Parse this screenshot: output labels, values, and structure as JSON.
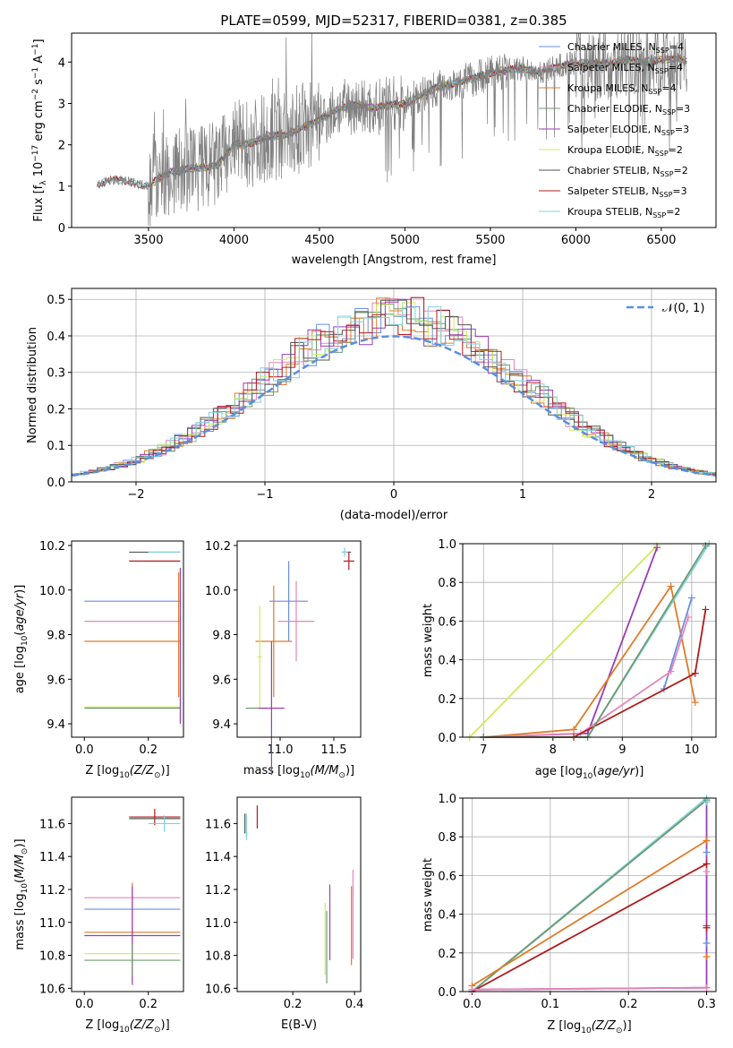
{
  "title": "PLATE=0599, MJD=52317, FIBERID=0381, z=0.385",
  "colors": {
    "chabrier_miles": "#6a8ee0",
    "salpeter_miles": "#e585b8",
    "kroupa_miles": "#e07b28",
    "chabrier_elodie": "#6f9a6f",
    "salpeter_elodie": "#9a3db8",
    "kroupa_elodie": "#cdec5a",
    "chabrier_stelib": "#555555",
    "salpeter_stelib": "#b01c1c",
    "kroupa_stelib": "#7ed3de",
    "observed": "#808080",
    "normal_dashed": "#5b8fe0"
  },
  "chart_data": [
    {
      "id": "spectrum",
      "type": "line",
      "xlabel": "wavelength [Angstrom, rest frame]",
      "ylabel": "Flux [f$_\\lambda$ 10$^{-17}$ erg cm$^{-2}$ s$^{-1}$ A$^{-1}$]",
      "ylabel_parts": {
        "flux": "Flux [f",
        "lam": "λ",
        "ten": " 10",
        "e1": "−17",
        "erg": " erg cm",
        "e2": "−2",
        "s": " s",
        "e3": "−1",
        "A": " A",
        "e4": "−1",
        "close": "]"
      },
      "xlim": [
        3050,
        6820
      ],
      "ylim": [
        0,
        4.7
      ],
      "xticks": [
        3500,
        4000,
        4500,
        5000,
        5500,
        6000,
        6500
      ],
      "yticks": [
        0,
        1,
        2,
        3,
        4
      ],
      "legend_placement": "right",
      "legend": [
        {
          "name": "Chabrier MILES, N",
          "sub": "SSP",
          "n": "=4",
          "color": "chabrier_miles"
        },
        {
          "name": "Salpeter MILES, N",
          "sub": "SSP",
          "n": "=4",
          "color": "salpeter_miles"
        },
        {
          "name": "Kroupa MILES, N",
          "sub": "SSP",
          "n": "=4",
          "color": "kroupa_miles"
        },
        {
          "name": "Chabrier ELODIE, N",
          "sub": "SSP",
          "n": "=3",
          "color": "chabrier_elodie"
        },
        {
          "name": "Salpeter ELODIE, N",
          "sub": "SSP",
          "n": "=3",
          "color": "salpeter_elodie"
        },
        {
          "name": "Kroupa ELODIE, N",
          "sub": "SSP",
          "n": "=2",
          "color": "kroupa_elodie"
        },
        {
          "name": "Chabrier STELIB, N",
          "sub": "SSP",
          "n": "=2",
          "color": "chabrier_stelib"
        },
        {
          "name": "Salpeter STELIB, N",
          "sub": "SSP",
          "n": "=3",
          "color": "salpeter_stelib"
        },
        {
          "name": "Kroupa STELIB, N",
          "sub": "SSP",
          "n": "=2",
          "color": "kroupa_stelib"
        }
      ],
      "continuum": [
        [
          3200,
          1.05
        ],
        [
          3300,
          1.15
        ],
        [
          3400,
          1.1
        ],
        [
          3500,
          1.0
        ],
        [
          3600,
          1.3
        ],
        [
          3700,
          1.4
        ],
        [
          3800,
          1.45
        ],
        [
          3900,
          1.5
        ],
        [
          4000,
          2.0
        ],
        [
          4100,
          2.05
        ],
        [
          4200,
          2.2
        ],
        [
          4300,
          2.25
        ],
        [
          4400,
          2.4
        ],
        [
          4500,
          2.6
        ],
        [
          4600,
          2.85
        ],
        [
          4700,
          2.95
        ],
        [
          4800,
          2.9
        ],
        [
          4900,
          2.95
        ],
        [
          5000,
          3.0
        ],
        [
          5100,
          3.2
        ],
        [
          5200,
          3.4
        ],
        [
          5300,
          3.5
        ],
        [
          5400,
          3.6
        ],
        [
          5500,
          3.75
        ],
        [
          5600,
          3.8
        ],
        [
          5700,
          3.85
        ],
        [
          5800,
          3.75
        ],
        [
          5900,
          3.9
        ],
        [
          6000,
          4.0
        ],
        [
          6100,
          3.95
        ],
        [
          6200,
          4.0
        ],
        [
          6300,
          4.05
        ],
        [
          6400,
          4.0
        ],
        [
          6500,
          4.05
        ],
        [
          6600,
          4.1
        ],
        [
          6650,
          4.0
        ]
      ]
    },
    {
      "id": "residuals",
      "type": "line",
      "xlabel": "(data-model)/error",
      "ylabel": "Normed distribution",
      "xlim": [
        -2.5,
        2.5
      ],
      "ylim": [
        0,
        0.53
      ],
      "xticks": [
        -2,
        -1,
        0,
        1,
        2
      ],
      "yticks": [
        0.0,
        0.1,
        0.2,
        0.3,
        0.4,
        0.5
      ],
      "grid": true,
      "legend_placement": "top-right",
      "legend_label": "𝒩(0, 1)",
      "series_note": "nine step histograms, one per model, plus dashed N(0,1)"
    },
    {
      "id": "age_vs_Z",
      "type": "scatter",
      "xlabel": "Z [log",
      "xlabel_sub": "10",
      "xlabel_tail": "(Z/Z",
      "xlabel_odot": "⊙",
      "xlabel_end": ")]",
      "ylabel": "age  [log10(age/yr)]",
      "xlim": [
        -0.04,
        0.31
      ],
      "ylim": [
        9.34,
        10.22
      ],
      "xticks": [
        0.0,
        0.2
      ],
      "yticks": [
        9.4,
        9.6,
        9.8,
        10.0,
        10.2
      ],
      "points": [
        {
          "model": "chabrier_miles",
          "x": 0.15,
          "xerr": [
            0.15,
            0.15
          ],
          "y": 9.95
        },
        {
          "model": "salpeter_miles",
          "x": 0.15,
          "xerr": [
            0.15,
            0.15
          ],
          "y": 9.86
        },
        {
          "model": "kroupa_miles",
          "x": 0.15,
          "xerr": [
            0.15,
            0.15
          ],
          "y": 9.77
        },
        {
          "model": "kroupa_miles",
          "x": 0.295,
          "xerr": [
            0.0,
            0.0
          ],
          "y": 9.8,
          "yerr": [
            0.28,
            0.28
          ]
        },
        {
          "model": "chabrier_elodie",
          "x": 0.15,
          "xerr": [
            0.15,
            0.15
          ],
          "y": 9.47
        },
        {
          "model": "kroupa_elodie",
          "x": 0.15,
          "xerr": [
            0.15,
            0.15
          ],
          "y": 9.475
        },
        {
          "model": "salpeter_elodie",
          "x": 0.3,
          "xerr": [
            0,
            0
          ],
          "y": 9.75,
          "yerr": [
            0.35,
            0.35
          ]
        },
        {
          "model": "chabrier_stelib",
          "x": 0.22,
          "xerr": [
            0.08,
            0.08
          ],
          "y": 10.17
        },
        {
          "model": "salpeter_stelib",
          "x": 0.22,
          "xerr": [
            0.08,
            0.08
          ],
          "y": 10.13
        },
        {
          "model": "kroupa_stelib",
          "x": 0.25,
          "xerr": [
            0.05,
            0.05
          ],
          "y": 10.17
        }
      ]
    },
    {
      "id": "age_vs_mass",
      "type": "scatter",
      "xlabel": "mass [log",
      "xlabel_sub": "10",
      "xlabel_tail": "(M/M",
      "xlabel_odot": "⊙",
      "xlabel_end": ")]",
      "xlim": [
        10.6,
        11.75
      ],
      "ylim": [
        9.34,
        10.22
      ],
      "xticks": [
        11.0,
        11.5
      ],
      "yticks": [
        9.4,
        9.6,
        9.8,
        10.0,
        10.2
      ],
      "points": [
        {
          "model": "chabrier_miles",
          "x": 11.08,
          "xerr": [
            0.18,
            0.18
          ],
          "y": 9.95,
          "yerr": [
            0.18,
            0.18
          ]
        },
        {
          "model": "salpeter_miles",
          "x": 11.15,
          "xerr": [
            0.17,
            0.17
          ],
          "y": 9.86,
          "yerr": [
            0.18,
            0.18
          ]
        },
        {
          "model": "kroupa_miles",
          "x": 10.94,
          "xerr": [
            0.17,
            0.17
          ],
          "y": 9.77,
          "yerr": [
            0.25,
            0.25
          ]
        },
        {
          "model": "chabrier_elodie",
          "x": 10.78,
          "xerr": [
            0.1,
            0.1
          ],
          "y": 9.47,
          "yerr": [
            0.0,
            0.0
          ]
        },
        {
          "model": "kroupa_elodie",
          "x": 10.81,
          "xerr": [
            0.02,
            0.02
          ],
          "y": 9.7,
          "yerr": [
            0.23,
            0.23
          ]
        },
        {
          "model": "salpeter_elodie",
          "x": 10.92,
          "xerr": [
            0.12,
            0.12
          ],
          "y": 9.47,
          "yerr": [
            0.3,
            0.3
          ]
        },
        {
          "model": "chabrier_stelib",
          "x": 11.62,
          "xerr": [
            0.04,
            0.04
          ],
          "y": 10.17,
          "yerr": [
            0.0,
            0.0
          ]
        },
        {
          "model": "salpeter_stelib",
          "x": 11.64,
          "xerr": [
            0.05,
            0.05
          ],
          "y": 10.13,
          "yerr": [
            0.04,
            0.04
          ]
        },
        {
          "model": "kroupa_stelib",
          "x": 11.6,
          "xerr": [
            0.03,
            0.03
          ],
          "y": 10.17,
          "yerr": [
            0.02,
            0.02
          ]
        }
      ]
    },
    {
      "id": "weight_vs_age",
      "type": "line",
      "xlabel": "age  [log10(age/yr)]",
      "ylabel": "mass weight",
      "xlim": [
        6.7,
        10.35
      ],
      "ylim": [
        0,
        1.0
      ],
      "xticks": [
        7,
        8,
        9,
        10
      ],
      "yticks": [
        0.0,
        0.2,
        0.4,
        0.6,
        0.8,
        1.0
      ],
      "grid": true,
      "series": [
        {
          "model": "kroupa_elodie",
          "x": [
            6.8,
            9.5
          ],
          "y": [
            0.0,
            0.99
          ]
        },
        {
          "model": "salpeter_elodie",
          "x": [
            7.0,
            8.5,
            9.5
          ],
          "y": [
            0.0,
            0.02,
            0.98
          ]
        },
        {
          "model": "kroupa_miles",
          "x": [
            7.0,
            8.3,
            9.7,
            10.05
          ],
          "y": [
            0.0,
            0.04,
            0.78,
            0.18
          ]
        },
        {
          "model": "chabrier_miles",
          "x": [
            9.6,
            10.0
          ],
          "y": [
            0.25,
            0.72
          ]
        },
        {
          "model": "salpeter_miles",
          "x": [
            7.0,
            8.4,
            9.7,
            9.95
          ],
          "y": [
            0.0,
            0.02,
            0.34,
            0.62
          ]
        },
        {
          "model": "kroupa_stelib",
          "x": [
            7.0,
            8.5,
            10.25
          ],
          "y": [
            0.0,
            0.0,
            1.0
          ]
        },
        {
          "model": "salpeter_stelib",
          "x": [
            7.0,
            8.3,
            10.05,
            10.2
          ],
          "y": [
            0.0,
            0.0,
            0.33,
            0.66
          ]
        },
        {
          "model": "chabrier_elodie",
          "x": [
            7.0,
            8.5,
            10.2
          ],
          "y": [
            0.0,
            0.0,
            0.99
          ]
        }
      ]
    },
    {
      "id": "mass_vs_Z",
      "type": "scatter",
      "xlabel": "Z [log",
      "xlabel_sub": "10",
      "xlabel_tail": "(Z/Z",
      "xlabel_odot": "⊙",
      "xlabel_end": ")]",
      "ylabel": "mass [log10(M/M⊙)]",
      "xlim": [
        -0.04,
        0.31
      ],
      "ylim": [
        10.58,
        11.76
      ],
      "xticks": [
        0.0,
        0.2
      ],
      "yticks": [
        10.6,
        10.8,
        11.0,
        11.2,
        11.4,
        11.6
      ],
      "points": [
        {
          "model": "salpeter_miles",
          "x": 0.15,
          "xerr": [
            0.15,
            0.15
          ],
          "y": 11.15
        },
        {
          "model": "chabrier_miles",
          "x": 0.15,
          "xerr": [
            0.15,
            0.15
          ],
          "y": 11.08
        },
        {
          "model": "kroupa_miles",
          "x": 0.15,
          "xerr": [
            0.15,
            0.15
          ],
          "y": 10.94,
          "yerr": [
            0.3,
            0.3
          ]
        },
        {
          "model": "salpeter_elodie",
          "x": 0.15,
          "xerr": [
            0.15,
            0.15
          ],
          "y": 10.92,
          "yerr": [
            0.3,
            0.3
          ]
        },
        {
          "model": "kroupa_elodie",
          "x": 0.15,
          "xerr": [
            0.15,
            0.15
          ],
          "y": 10.81
        },
        {
          "model": "chabrier_elodie",
          "x": 0.15,
          "xerr": [
            0.15,
            0.15
          ],
          "y": 10.77,
          "yerr": [
            0.1,
            0.1
          ]
        },
        {
          "model": "salpeter_stelib",
          "x": 0.22,
          "xerr": [
            0.08,
            0.08
          ],
          "y": 11.64,
          "yerr": [
            0.05,
            0.05
          ]
        },
        {
          "model": "chabrier_stelib",
          "x": 0.22,
          "xerr": [
            0.08,
            0.08
          ],
          "y": 11.63
        },
        {
          "model": "kroupa_stelib",
          "x": 0.25,
          "xerr": [
            0.05,
            0.05
          ],
          "y": 11.6,
          "yerr": [
            0.05,
            0.05
          ]
        }
      ]
    },
    {
      "id": "mass_vs_ebv",
      "type": "scatter",
      "xlabel": "E(B-V)",
      "xlim": [
        0.02,
        0.42
      ],
      "ylim": [
        10.58,
        11.76
      ],
      "xticks": [
        0.2,
        0.4
      ],
      "yticks": [
        10.6,
        10.8,
        11.0,
        11.2,
        11.4,
        11.6
      ],
      "points": [
        {
          "model": "chabrier_stelib",
          "x": 0.045,
          "y": 11.6,
          "yerr": [
            0.06,
            0.06
          ]
        },
        {
          "model": "kroupa_stelib",
          "x": 0.05,
          "y": 11.58,
          "yerr": [
            0.08,
            0.08
          ]
        },
        {
          "model": "salpeter_stelib",
          "x": 0.085,
          "y": 11.64,
          "yerr": [
            0.07,
            0.07
          ]
        },
        {
          "model": "chabrier_elodie",
          "x": 0.31,
          "y": 10.85,
          "yerr": [
            0.22,
            0.22
          ]
        },
        {
          "model": "kroupa_elodie",
          "x": 0.305,
          "y": 10.9,
          "yerr": [
            0.22,
            0.22
          ]
        },
        {
          "model": "salpeter_elodie",
          "x": 0.32,
          "y": 11.0,
          "yerr": [
            0.23,
            0.23
          ]
        },
        {
          "model": "kroupa_miles",
          "x": 0.39,
          "y": 10.98,
          "yerr": [
            0.24,
            0.24
          ]
        },
        {
          "model": "salpeter_miles",
          "x": 0.395,
          "y": 11.05,
          "yerr": [
            0.27,
            0.27
          ]
        }
      ]
    },
    {
      "id": "weight_vs_Z",
      "type": "line",
      "xlabel": "Z [log",
      "xlabel_sub": "10",
      "xlabel_tail": "(Z/Z",
      "xlabel_odot": "⊙",
      "xlabel_end": ")]",
      "ylabel": "mass weight",
      "xlim": [
        -0.012,
        0.312
      ],
      "ylim": [
        0,
        1.0
      ],
      "xticks": [
        0.0,
        0.1,
        0.2,
        0.3
      ],
      "yticks": [
        0.0,
        0.2,
        0.4,
        0.6,
        0.8,
        1.0
      ],
      "grid": true,
      "series": [
        {
          "model": "kroupa_stelib",
          "x": [
            0.0,
            0.3
          ],
          "y": [
            0.0,
            1.0
          ]
        },
        {
          "model": "chabrier_elodie",
          "x": [
            0.0,
            0.3
          ],
          "y": [
            0.0,
            0.99
          ]
        },
        {
          "model": "kroupa_miles",
          "x": [
            0.0,
            0.3
          ],
          "y": [
            0.03,
            0.78
          ]
        },
        {
          "model": "salpeter_stelib",
          "x": [
            0.0,
            0.3
          ],
          "y": [
            0.0,
            0.66
          ]
        },
        {
          "model": "salpeter_elodie",
          "x": [
            0.0,
            0.3,
            0.3
          ],
          "y": [
            0.01,
            0.02,
            0.98
          ]
        },
        {
          "model": "salpeter_miles",
          "x": [
            0.0,
            0.3
          ],
          "y": [
            0.01,
            0.02
          ]
        }
      ],
      "markers_at_x": 0.3,
      "marker_y": [
        0.98,
        0.78,
        0.72,
        0.66,
        0.62,
        0.34,
        0.33,
        0.25,
        0.18,
        0.02
      ]
    }
  ]
}
